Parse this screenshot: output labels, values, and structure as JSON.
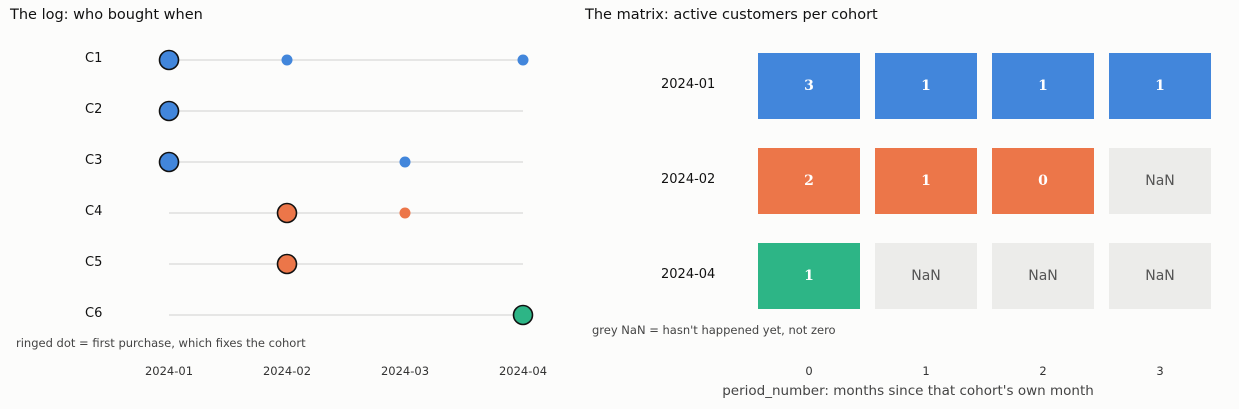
{
  "colors": {
    "cohort_2024_01": "#4286db",
    "cohort_2024_02": "#ec7649",
    "cohort_2024_04": "#2db586",
    "nan": "#ececea",
    "line": "#d8d8d8"
  },
  "chart_data": [
    {
      "type": "scatter",
      "title": "The log: who bought when",
      "customers": [
        "C1",
        "C2",
        "C3",
        "C4",
        "C5",
        "C6"
      ],
      "x_ticks": [
        "2024-01",
        "2024-02",
        "2024-03",
        "2024-04"
      ],
      "purchases": [
        {
          "customer": "C1",
          "month": "2024-01",
          "first": true,
          "cohort": "2024-01"
        },
        {
          "customer": "C1",
          "month": "2024-02",
          "first": false,
          "cohort": "2024-01"
        },
        {
          "customer": "C1",
          "month": "2024-04",
          "first": false,
          "cohort": "2024-01"
        },
        {
          "customer": "C2",
          "month": "2024-01",
          "first": true,
          "cohort": "2024-01"
        },
        {
          "customer": "C3",
          "month": "2024-01",
          "first": true,
          "cohort": "2024-01"
        },
        {
          "customer": "C3",
          "month": "2024-03",
          "first": false,
          "cohort": "2024-01"
        },
        {
          "customer": "C4",
          "month": "2024-02",
          "first": true,
          "cohort": "2024-02"
        },
        {
          "customer": "C4",
          "month": "2024-03",
          "first": false,
          "cohort": "2024-02"
        },
        {
          "customer": "C5",
          "month": "2024-02",
          "first": true,
          "cohort": "2024-02"
        },
        {
          "customer": "C6",
          "month": "2024-04",
          "first": true,
          "cohort": "2024-04"
        }
      ],
      "note": "ringed dot = first purchase, which fixes the cohort"
    },
    {
      "type": "heatmap",
      "title": "The matrix: active customers per cohort",
      "rows": [
        "2024-01",
        "2024-02",
        "2024-04"
      ],
      "columns": [
        "0",
        "1",
        "2",
        "3"
      ],
      "values": [
        [
          3,
          1,
          1,
          1
        ],
        [
          2,
          1,
          0,
          null
        ],
        [
          1,
          null,
          null,
          null
        ]
      ],
      "nan_label": "NaN",
      "xlabel": "period_number: months since that cohort's own month",
      "note": "grey NaN = hasn't happened yet, not zero"
    }
  ]
}
